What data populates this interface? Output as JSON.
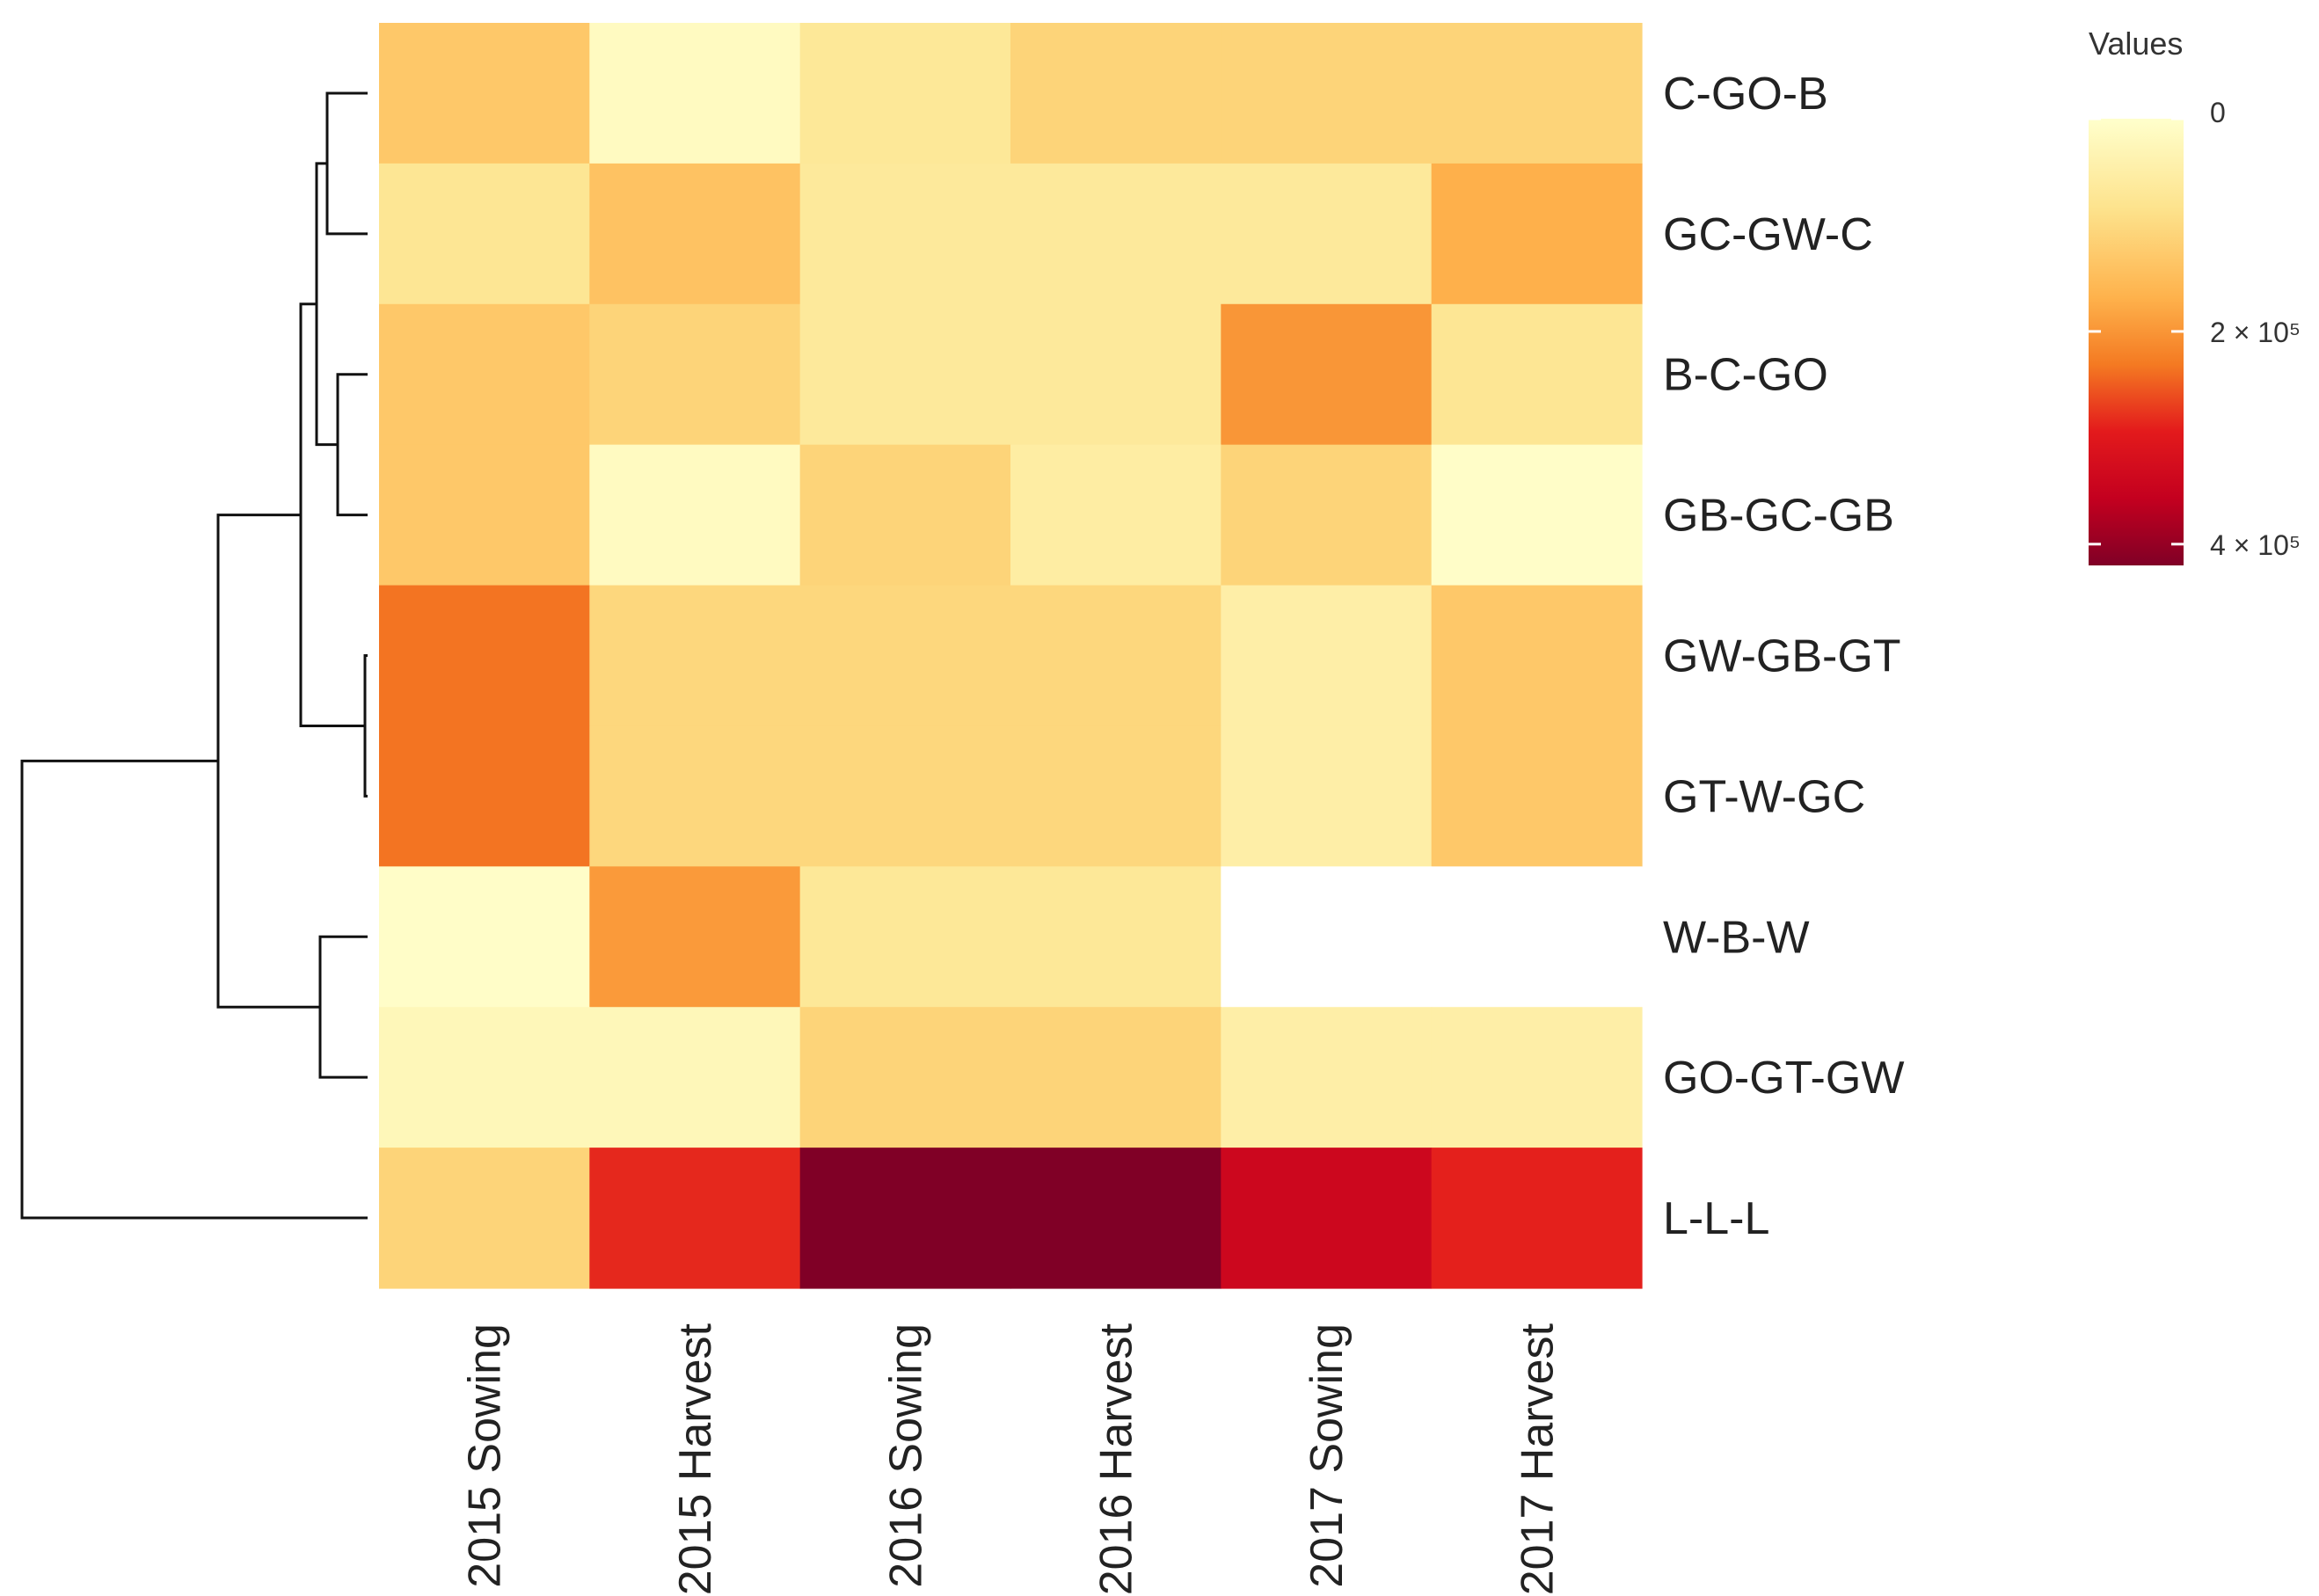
{
  "chart_data": {
    "type": "heatmap",
    "title": "",
    "legend_title": "Values",
    "legend_position": "top-right",
    "legend_ticks": [
      {
        "value": 0,
        "label": "0"
      },
      {
        "value": 200000,
        "label": "2 × 10⁵"
      },
      {
        "value": 400000,
        "label": "4 × 10⁵"
      }
    ],
    "value_range": [
      0,
      420000
    ],
    "rows": [
      "C-GO-B",
      "GC-GW-C",
      "B-C-GO",
      "GB-GC-GB",
      "GW-GB-GT",
      "GT-W-GC",
      "W-B-W",
      "GO-GT-GW",
      "L-L-L"
    ],
    "columns": [
      "2015 Sowing",
      "2015 Harvest",
      "2016 Sowing",
      "2016 Harvest",
      "2017 Sowing",
      "2017 Harvest"
    ],
    "values": [
      [
        130000,
        15000,
        70000,
        110000,
        110000,
        110000
      ],
      [
        75000,
        140000,
        65000,
        65000,
        65000,
        170000
      ],
      [
        130000,
        110000,
        65000,
        65000,
        200000,
        75000
      ],
      [
        130000,
        15000,
        110000,
        55000,
        110000,
        5000
      ],
      [
        235000,
        105000,
        105000,
        105000,
        50000,
        130000
      ],
      [
        235000,
        105000,
        105000,
        105000,
        50000,
        130000
      ],
      [
        5000,
        195000,
        70000,
        70000,
        null,
        null
      ],
      [
        25000,
        25000,
        110000,
        110000,
        50000,
        50000
      ],
      [
        110000,
        285000,
        420000,
        420000,
        340000,
        290000
      ]
    ],
    "color_scale": {
      "low": "#FFFFCC",
      "mid_low": "#FEB24C",
      "mid": "#F03B20",
      "mid_high": "#D7001F",
      "high": "#800026"
    },
    "dendrogram_side": "left"
  }
}
